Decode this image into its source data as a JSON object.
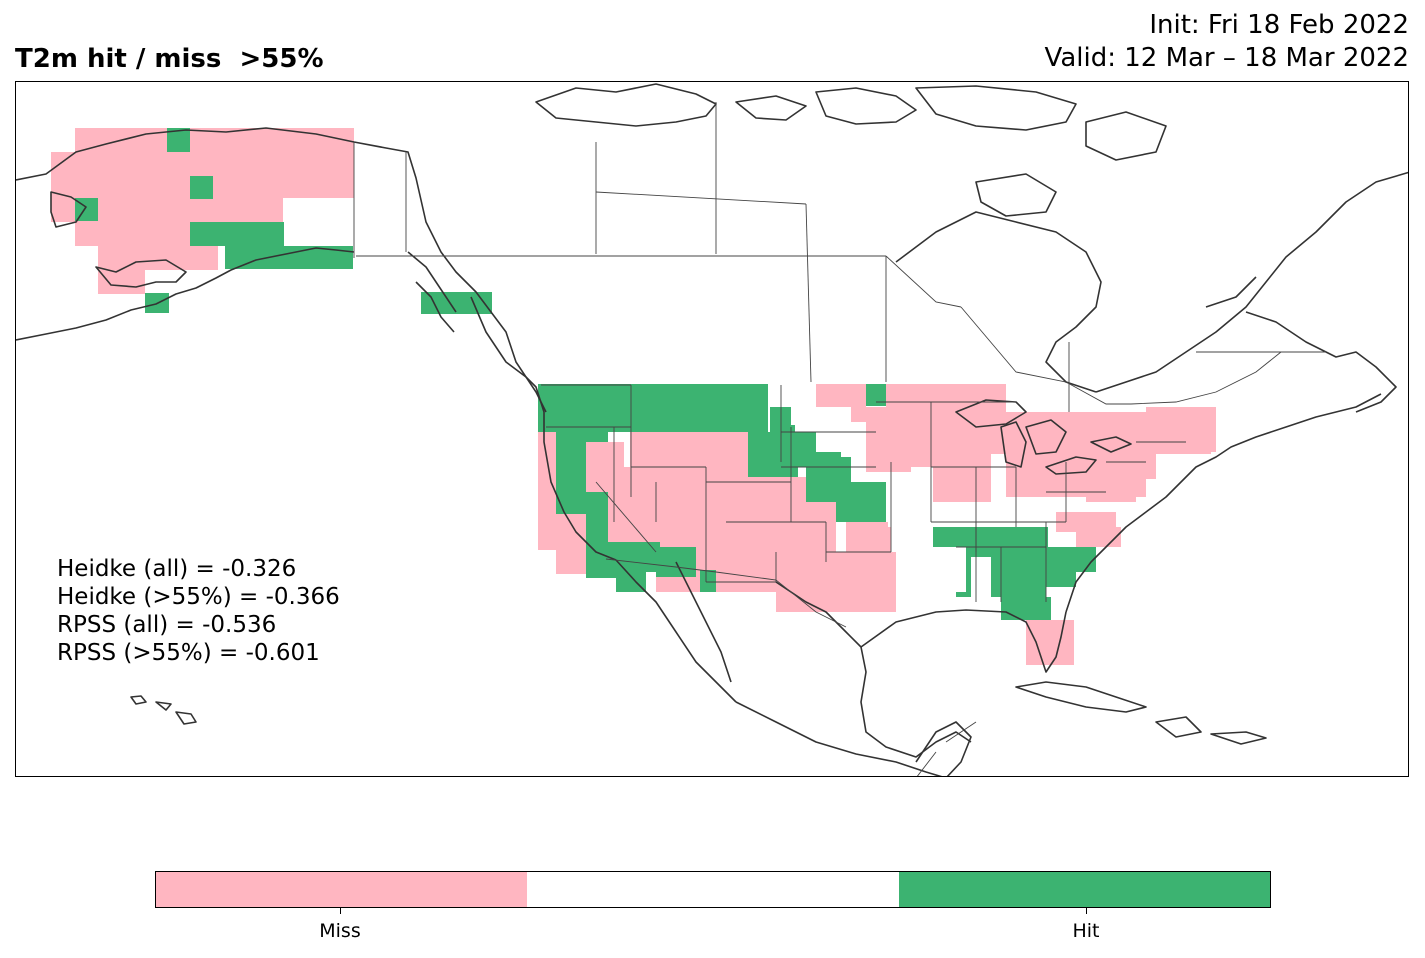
{
  "header": {
    "title": "T2m hit / miss  >55%",
    "init": "Init: Fri 18 Feb 2022",
    "valid": "Valid: 12 Mar – 18 Mar 2022"
  },
  "stats": [
    "Heidke (all) = -0.326",
    "Heidke (>55%) = -0.366",
    "RPSS (all) = -0.536",
    "RPSS (>55%) = -0.601"
  ],
  "colorbar": {
    "colors": [
      "#ffb6c1",
      "#ffffff",
      "#3cb371"
    ],
    "labels": [
      "Miss",
      "Hit"
    ]
  },
  "map": {
    "coast_color": "#333333",
    "border_color": "#444444",
    "miss_color": "#ffb6c1",
    "hit_color": "#3cb371"
  }
}
